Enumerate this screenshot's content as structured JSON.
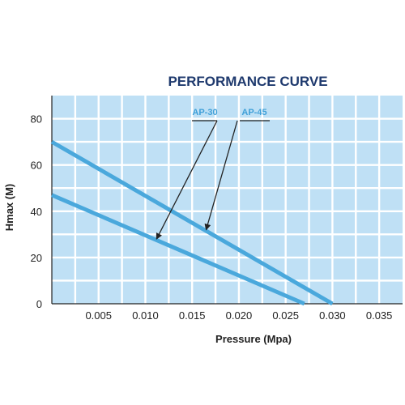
{
  "chart_data": {
    "type": "line",
    "title": "PERFORMANCE CURVE",
    "xlabel": "Pressure (Mpa)",
    "ylabel": "Hmax (M)",
    "xlim": [
      0,
      0.0375
    ],
    "ylim": [
      0,
      90
    ],
    "xticks": [
      {
        "value": 0.005,
        "label": "0.005"
      },
      {
        "value": 0.01,
        "label": "0.010"
      },
      {
        "value": 0.015,
        "label": "0.015"
      },
      {
        "value": 0.02,
        "label": "0.020"
      },
      {
        "value": 0.025,
        "label": "0.025"
      },
      {
        "value": 0.03,
        "label": "0.030"
      },
      {
        "value": 0.035,
        "label": "0.035"
      }
    ],
    "yticks": [
      {
        "value": 0,
        "label": "0"
      },
      {
        "value": 20,
        "label": "20"
      },
      {
        "value": 40,
        "label": "40"
      },
      {
        "value": 60,
        "label": "60"
      },
      {
        "value": 80,
        "label": "80"
      }
    ],
    "grid": true,
    "series": [
      {
        "name": "AP-30",
        "x": [
          0,
          0.027
        ],
        "y": [
          47,
          0
        ],
        "arrow_target": [
          0.0112,
          28
        ]
      },
      {
        "name": "AP-45",
        "x": [
          0,
          0.03
        ],
        "y": [
          70,
          0
        ],
        "arrow_target": [
          0.0165,
          32
        ]
      }
    ],
    "colors": {
      "plot_background": "#bfe0f5",
      "grid": "#ffffff",
      "line": "#4aa8dc",
      "label": "#3fa0d8",
      "arrow": "#222222",
      "title": "#1f3a6e",
      "text": "#222222"
    }
  }
}
